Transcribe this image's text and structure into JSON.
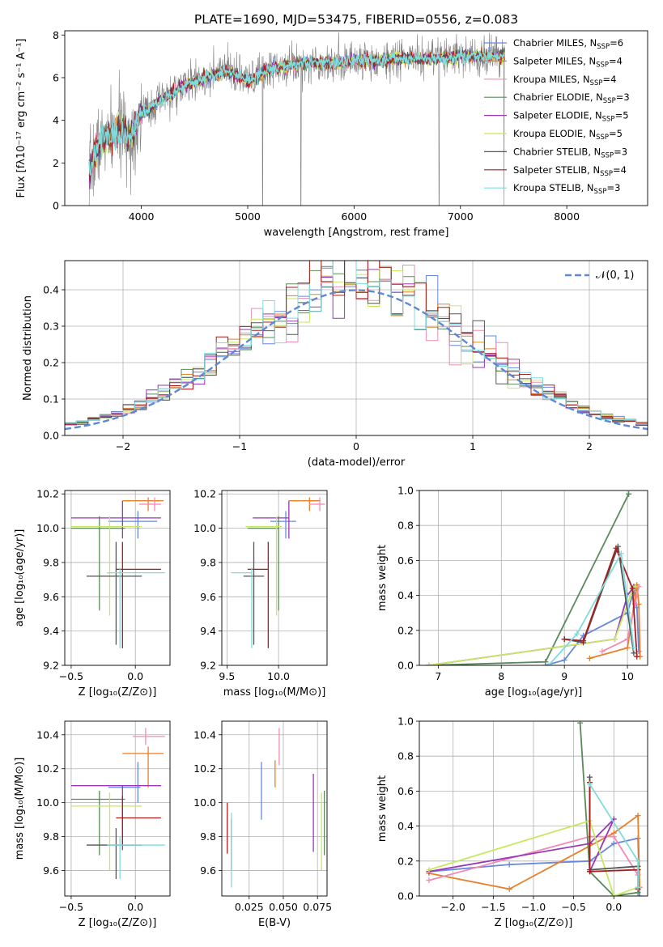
{
  "figure": {
    "title": "PLATE=1690, MJD=53475, FIBERID=0556, z=0.083"
  },
  "colors": {
    "Chabrier MILES": "#6688dd",
    "Salpeter MILES": "#e87f2a",
    "Kroupa MILES": "#f08cb4",
    "Chabrier ELODIE": "#5a8a5c",
    "Salpeter ELODIE": "#9a36b8",
    "Kroupa ELODIE": "#c8e860",
    "Chabrier STELIB": "#555555",
    "Salpeter STELIB": "#a81e1e",
    "Kroupa STELIB": "#7fdcdc",
    "data": "#808080",
    "normal": "#5f87d6"
  },
  "chart_data": [
    {
      "name": "spectrum",
      "type": "line",
      "title": "PLATE=1690, MJD=53475, FIBERID=0556, z=0.083",
      "xlabel": "wavelength [Angstrom, rest frame]",
      "ylabel": "Flux [fλ10⁻¹⁷ erg cm⁻² s⁻¹ A⁻¹]",
      "xlim": [
        3280,
        8760
      ],
      "ylim": [
        0,
        8.2
      ],
      "xticks": [
        4000,
        5000,
        6000,
        7000,
        8000
      ],
      "yticks": [
        0,
        2,
        4,
        6,
        8
      ],
      "legend_position": "right",
      "legend": [
        "Chabrier MILES, N_SSP=6",
        "Salpeter MILES, N_SSP=4",
        "Kroupa MILES, N_SSP=4",
        "Chabrier ELODIE, N_SSP=3",
        "Salpeter ELODIE, N_SSP=5",
        "Kroupa ELODIE, N_SSP=5",
        "Chabrier STELIB, N_SSP=3",
        "Salpeter STELIB, N_SSP=4",
        "Kroupa STELIB, N_SSP=3"
      ],
      "data_range": [
        3510,
        7420
      ],
      "model_levels": [
        [
          3510,
          1.6
        ],
        [
          3600,
          2.9
        ],
        [
          3700,
          3.2
        ],
        [
          3800,
          3.6
        ],
        [
          3900,
          3.2
        ],
        [
          4000,
          4.3
        ],
        [
          4200,
          5.0
        ],
        [
          4400,
          5.6
        ],
        [
          4600,
          6.0
        ],
        [
          4800,
          6.3
        ],
        [
          4900,
          6.1
        ],
        [
          5000,
          5.8
        ],
        [
          5200,
          6.4
        ],
        [
          5400,
          6.6
        ],
        [
          5600,
          6.7
        ],
        [
          5800,
          6.7
        ],
        [
          6000,
          6.8
        ],
        [
          6200,
          6.8
        ],
        [
          6400,
          6.9
        ],
        [
          6600,
          6.9
        ],
        [
          6800,
          6.9
        ],
        [
          7000,
          7.0
        ],
        [
          7200,
          7.0
        ],
        [
          7420,
          7.0
        ]
      ],
      "dips": [
        [
          3510,
          0
        ],
        [
          3900,
          0.5
        ],
        [
          5140,
          0
        ],
        [
          5500,
          0
        ],
        [
          6800,
          0
        ],
        [
          7410,
          0
        ]
      ]
    },
    {
      "name": "residuals",
      "type": "histogram",
      "xlabel": "(data-model)/error",
      "ylabel": "Normed distribution",
      "xlim": [
        -2.5,
        2.5
      ],
      "ylim": [
        0,
        0.48
      ],
      "xticks": [
        -2,
        -1,
        0,
        1,
        2
      ],
      "yticks": [
        0.0,
        0.1,
        0.2,
        0.3,
        0.4
      ],
      "legend": [
        "𝒩(0, 1)"
      ],
      "legend_position": "top-right",
      "grid": true,
      "bin_width": 0.1
    },
    {
      "name": "age-vs-Z",
      "type": "errorbar",
      "xlabel": "Z [log₁₀(Z/Z⊙)]",
      "ylabel": "age  [log₁₀(age/yr)]",
      "xlim": [
        -0.55,
        0.27
      ],
      "ylim": [
        9.2,
        10.22
      ],
      "xticks": [
        -0.5,
        0.0
      ],
      "yticks": [
        9.2,
        9.4,
        9.6,
        9.8,
        10.0,
        10.2
      ],
      "grid": true,
      "points": [
        {
          "model": "Chabrier MILES",
          "x": 0.02,
          "xerr": [
            0.23,
            0.15
          ],
          "y": 10.04,
          "yerr": [
            0.1,
            0.06
          ]
        },
        {
          "model": "Salpeter MILES",
          "x": 0.1,
          "xerr": [
            0.2,
            0.12
          ],
          "y": 10.16,
          "yerr": [
            0.06,
            0.02
          ]
        },
        {
          "model": "Kroupa MILES",
          "x": 0.15,
          "xerr": [
            0.12,
            0.05
          ],
          "y": 10.14,
          "yerr": [
            0.04,
            0.04
          ]
        },
        {
          "model": "Chabrier ELODIE",
          "x": -0.28,
          "xerr": [
            0.22,
            0.2
          ],
          "y": 10.0,
          "yerr": [
            0.48,
            0.07
          ]
        },
        {
          "model": "Salpeter ELODIE",
          "x": -0.1,
          "xerr": [
            0.4,
            0.3
          ],
          "y": 10.06,
          "yerr": [
            0.12,
            0.1
          ]
        },
        {
          "model": "Kroupa ELODIE",
          "x": -0.2,
          "xerr": [
            0.3,
            0.25
          ],
          "y": 10.01,
          "yerr": [
            0.52,
            0.06
          ]
        },
        {
          "model": "Chabrier STELIB",
          "x": -0.15,
          "xerr": [
            0.23,
            0.2
          ],
          "y": 9.72,
          "yerr": [
            0.4,
            0.2
          ]
        },
        {
          "model": "Salpeter STELIB",
          "x": -0.1,
          "xerr": [
            0.05,
            0.3
          ],
          "y": 9.76,
          "yerr": [
            0.46,
            0.16
          ]
        },
        {
          "model": "Kroupa STELIB",
          "x": -0.12,
          "xerr": [
            0.1,
            0.35
          ],
          "y": 9.74,
          "yerr": [
            0.44,
            0.03
          ]
        }
      ]
    },
    {
      "name": "age-vs-mass",
      "type": "errorbar",
      "xlabel": "mass [log₁₀(M/M⊙)]",
      "ylabel": "",
      "xlim": [
        9.45,
        10.47
      ],
      "ylim": [
        9.2,
        10.22
      ],
      "xticks": [
        9.5,
        10.0
      ],
      "yticks": [
        9.2,
        9.4,
        9.6,
        9.8,
        10.0,
        10.2
      ],
      "grid": true,
      "points": [
        {
          "model": "Chabrier MILES",
          "x": 10.07,
          "xerr": [
            0.15,
            0.1
          ],
          "y": 10.04,
          "yerr": [
            0.1,
            0.06
          ]
        },
        {
          "model": "Salpeter MILES",
          "x": 10.3,
          "xerr": [
            0.2,
            0.1
          ],
          "y": 10.16,
          "yerr": [
            0.06,
            0.02
          ]
        },
        {
          "model": "Kroupa MILES",
          "x": 10.4,
          "xerr": [
            0.1,
            0.05
          ],
          "y": 10.14,
          "yerr": [
            0.04,
            0.04
          ]
        },
        {
          "model": "Chabrier ELODIE",
          "x": 10.0,
          "xerr": [
            0.3,
            0.0
          ],
          "y": 10.0,
          "yerr": [
            0.48,
            0.07
          ]
        },
        {
          "model": "Salpeter ELODIE",
          "x": 10.1,
          "xerr": [
            0.35,
            0.0
          ],
          "y": 10.06,
          "yerr": [
            0.12,
            0.1
          ]
        },
        {
          "model": "Kroupa ELODIE",
          "x": 9.98,
          "xerr": [
            0.3,
            0.05
          ],
          "y": 10.01,
          "yerr": [
            0.52,
            0.06
          ]
        },
        {
          "model": "Chabrier STELIB",
          "x": 9.76,
          "xerr": [
            0.1,
            0.1
          ],
          "y": 9.72,
          "yerr": [
            0.4,
            0.2
          ]
        },
        {
          "model": "Salpeter STELIB",
          "x": 9.9,
          "xerr": [
            0.2,
            0.0
          ],
          "y": 9.76,
          "yerr": [
            0.46,
            0.16
          ]
        },
        {
          "model": "Kroupa STELIB",
          "x": 9.74,
          "xerr": [
            0.2,
            0.0
          ],
          "y": 9.74,
          "yerr": [
            0.44,
            0.03
          ]
        }
      ]
    },
    {
      "name": "weight-vs-age",
      "type": "line",
      "xlabel": "age  [log₁₀(age/yr)]",
      "ylabel": "mass weight",
      "xlim": [
        6.7,
        10.32
      ],
      "ylim": [
        0,
        1.0
      ],
      "xticks": [
        7,
        8,
        9,
        10
      ],
      "yticks": [
        0.0,
        0.2,
        0.4,
        0.6,
        0.8,
        1.0
      ],
      "grid": true,
      "series": [
        {
          "model": "Chabrier MILES",
          "x": [
            8.7,
            9.0,
            9.3,
            10.0,
            10.1,
            10.15,
            10.18
          ],
          "y": [
            0.0,
            0.03,
            0.17,
            0.3,
            0.43,
            0.33,
            0.08
          ]
        },
        {
          "model": "Salpeter MILES",
          "x": [
            9.4,
            10.0,
            10.15,
            10.18,
            10.2
          ],
          "y": [
            0.04,
            0.1,
            0.46,
            0.35,
            0.05
          ]
        },
        {
          "model": "Kroupa MILES",
          "x": [
            9.6,
            10.0,
            10.12,
            10.18
          ],
          "y": [
            0.08,
            0.15,
            0.35,
            0.45
          ]
        },
        {
          "model": "Chabrier ELODIE",
          "x": [
            6.85,
            8.7,
            10.02
          ],
          "y": [
            0.0,
            0.02,
            0.98
          ]
        },
        {
          "model": "Salpeter ELODIE",
          "x": [
            6.85,
            9.8,
            10.0,
            10.1
          ],
          "y": [
            0.0,
            0.15,
            0.4,
            0.45
          ]
        },
        {
          "model": "Kroupa ELODIE",
          "x": [
            6.85,
            9.8,
            10.05,
            10.12
          ],
          "y": [
            0.0,
            0.15,
            0.4,
            0.45
          ]
        },
        {
          "model": "Chabrier STELIB",
          "x": [
            9.0,
            9.3,
            9.85,
            10.1
          ],
          "y": [
            0.15,
            0.13,
            0.68,
            0.07
          ]
        },
        {
          "model": "Salpeter STELIB",
          "x": [
            9.0,
            9.3,
            9.82,
            10.08,
            10.15
          ],
          "y": [
            0.15,
            0.14,
            0.67,
            0.44,
            0.05
          ]
        },
        {
          "model": "Kroupa STELIB",
          "x": [
            8.75,
            9.2,
            9.9,
            10.1
          ],
          "y": [
            0.0,
            0.18,
            0.64,
            0.1
          ]
        }
      ]
    },
    {
      "name": "mass-vs-Z",
      "type": "errorbar",
      "xlabel": "Z [log₁₀(Z/Z⊙)]",
      "ylabel": "mass [log₁₀(M/M⊙)]",
      "xlim": [
        -0.55,
        0.27
      ],
      "ylim": [
        9.45,
        10.48
      ],
      "xticks": [
        -0.5,
        0.0
      ],
      "yticks": [
        9.6,
        9.8,
        10.0,
        10.2,
        10.4
      ],
      "grid": true,
      "points": [
        {
          "model": "Chabrier MILES",
          "x": 0.02,
          "xerr": [
            0.23,
            0.02
          ],
          "y": 10.09,
          "yerr": [
            0.09,
            0.15
          ]
        },
        {
          "model": "Salpeter MILES",
          "x": 0.1,
          "xerr": [
            0.2,
            0.12
          ],
          "y": 10.29,
          "yerr": [
            0.2,
            0.04
          ]
        },
        {
          "model": "Kroupa MILES",
          "x": 0.08,
          "xerr": [
            0.1,
            0.15
          ],
          "y": 10.39,
          "yerr": [
            0.05,
            0.05
          ]
        },
        {
          "model": "Chabrier ELODIE",
          "x": -0.28,
          "xerr": [
            0.22,
            0.2
          ],
          "y": 10.02,
          "yerr": [
            0.33,
            0.05
          ]
        },
        {
          "model": "Salpeter ELODIE",
          "x": -0.1,
          "xerr": [
            0.4,
            0.3
          ],
          "y": 10.1,
          "yerr": [
            0.38,
            0.0
          ]
        },
        {
          "model": "Kroupa ELODIE",
          "x": -0.2,
          "xerr": [
            0.3,
            0.25
          ],
          "y": 9.98,
          "yerr": [
            0.38,
            0.08
          ]
        },
        {
          "model": "Chabrier STELIB",
          "x": -0.15,
          "xerr": [
            0.23,
            0.2
          ],
          "y": 9.75,
          "yerr": [
            0.2,
            0.1
          ]
        },
        {
          "model": "Salpeter STELIB",
          "x": -0.1,
          "xerr": [
            0.05,
            0.3
          ],
          "y": 9.91,
          "yerr": [
            0.16,
            0.13
          ]
        },
        {
          "model": "Kroupa STELIB",
          "x": -0.12,
          "xerr": [
            0.1,
            0.35
          ],
          "y": 9.75,
          "yerr": [
            0.2,
            0.05
          ]
        }
      ]
    },
    {
      "name": "mass-vs-EBV",
      "type": "errorbar",
      "xlabel": "E(B-V)",
      "ylabel": "",
      "xlim": [
        0.005,
        0.082
      ],
      "ylim": [
        9.45,
        10.48
      ],
      "xticks": [
        0.025,
        0.05,
        0.075
      ],
      "xticklabels": [
        "0.025",
        "0.050",
        "0.075"
      ],
      "yticks": [
        9.6,
        9.8,
        10.0,
        10.2,
        10.4
      ],
      "grid": true,
      "points": [
        {
          "model": "Chabrier MILES",
          "x": 0.034,
          "y": 10.07,
          "yerr": [
            0.17,
            0.17
          ]
        },
        {
          "model": "Salpeter MILES",
          "x": 0.044,
          "y": 10.17,
          "yerr": [
            0.08,
            0.08
          ]
        },
        {
          "model": "Kroupa MILES",
          "x": 0.047,
          "y": 10.33,
          "yerr": [
            0.11,
            0.11
          ]
        },
        {
          "model": "Chabrier ELODIE",
          "x": 0.08,
          "y": 9.87,
          "yerr": [
            0.18,
            0.2
          ]
        },
        {
          "model": "Salpeter ELODIE",
          "x": 0.072,
          "y": 9.94,
          "yerr": [
            0.23,
            0.23
          ]
        },
        {
          "model": "Kroupa ELODIE",
          "x": 0.078,
          "y": 9.83,
          "yerr": [
            0.23,
            0.23
          ]
        },
        {
          "model": "Chabrier STELIB",
          "x": 0.012,
          "y": 9.75,
          "yerr": [
            0.15,
            0.15
          ]
        },
        {
          "model": "Salpeter STELIB",
          "x": 0.009,
          "y": 9.85,
          "yerr": [
            0.15,
            0.15
          ]
        },
        {
          "model": "Kroupa STELIB",
          "x": 0.012,
          "y": 9.72,
          "yerr": [
            0.22,
            0.22
          ]
        }
      ]
    },
    {
      "name": "weight-vs-Z",
      "type": "line",
      "xlabel": "Z [log₁₀(Z/Z⊙)]",
      "ylabel": "mass weight",
      "xlim": [
        -2.42,
        0.42
      ],
      "ylim": [
        0,
        1.0
      ],
      "xticks": [
        -2.0,
        -1.5,
        -1.0,
        -0.5,
        0.0
      ],
      "yticks": [
        0.0,
        0.2,
        0.4,
        0.6,
        0.8,
        1.0
      ],
      "grid": true,
      "series": [
        {
          "model": "Chabrier MILES",
          "x": [
            -2.3,
            -1.3,
            -0.3,
            0.0,
            0.3,
            0.32
          ],
          "y": [
            0.14,
            0.18,
            0.2,
            0.3,
            0.33,
            0.0
          ]
        },
        {
          "model": "Salpeter MILES",
          "x": [
            -2.3,
            -1.3,
            0.0,
            0.3,
            0.32
          ],
          "y": [
            0.13,
            0.04,
            0.36,
            0.46,
            0.05
          ]
        },
        {
          "model": "Kroupa MILES",
          "x": [
            -2.3,
            -0.3,
            0.0,
            0.3
          ],
          "y": [
            0.09,
            0.34,
            0.34,
            0.12
          ]
        },
        {
          "model": "Chabrier ELODIE",
          "x": [
            -0.42,
            -0.3,
            0.0,
            0.3
          ],
          "y": [
            0.99,
            0.14,
            0.0,
            0.02
          ]
        },
        {
          "model": "Salpeter ELODIE",
          "x": [
            -2.3,
            -0.3,
            0.0,
            -0.3
          ],
          "y": [
            0.14,
            0.3,
            0.44,
            0.14
          ]
        },
        {
          "model": "Kroupa ELODIE",
          "x": [
            -2.3,
            -0.3,
            0.0,
            0.3
          ],
          "y": [
            0.15,
            0.43,
            0.0,
            0.05
          ]
        },
        {
          "model": "Chabrier STELIB",
          "x": [
            -0.3,
            -0.3,
            0.3
          ],
          "y": [
            0.68,
            0.15,
            0.17
          ]
        },
        {
          "model": "Salpeter STELIB",
          "x": [
            -0.3,
            -0.3,
            0.3,
            0.3
          ],
          "y": [
            0.65,
            0.14,
            0.15,
            0.04
          ]
        },
        {
          "model": "Kroupa STELIB",
          "x": [
            -0.3,
            0.3,
            0.3
          ],
          "y": [
            0.64,
            0.2,
            0.05
          ]
        }
      ]
    }
  ]
}
